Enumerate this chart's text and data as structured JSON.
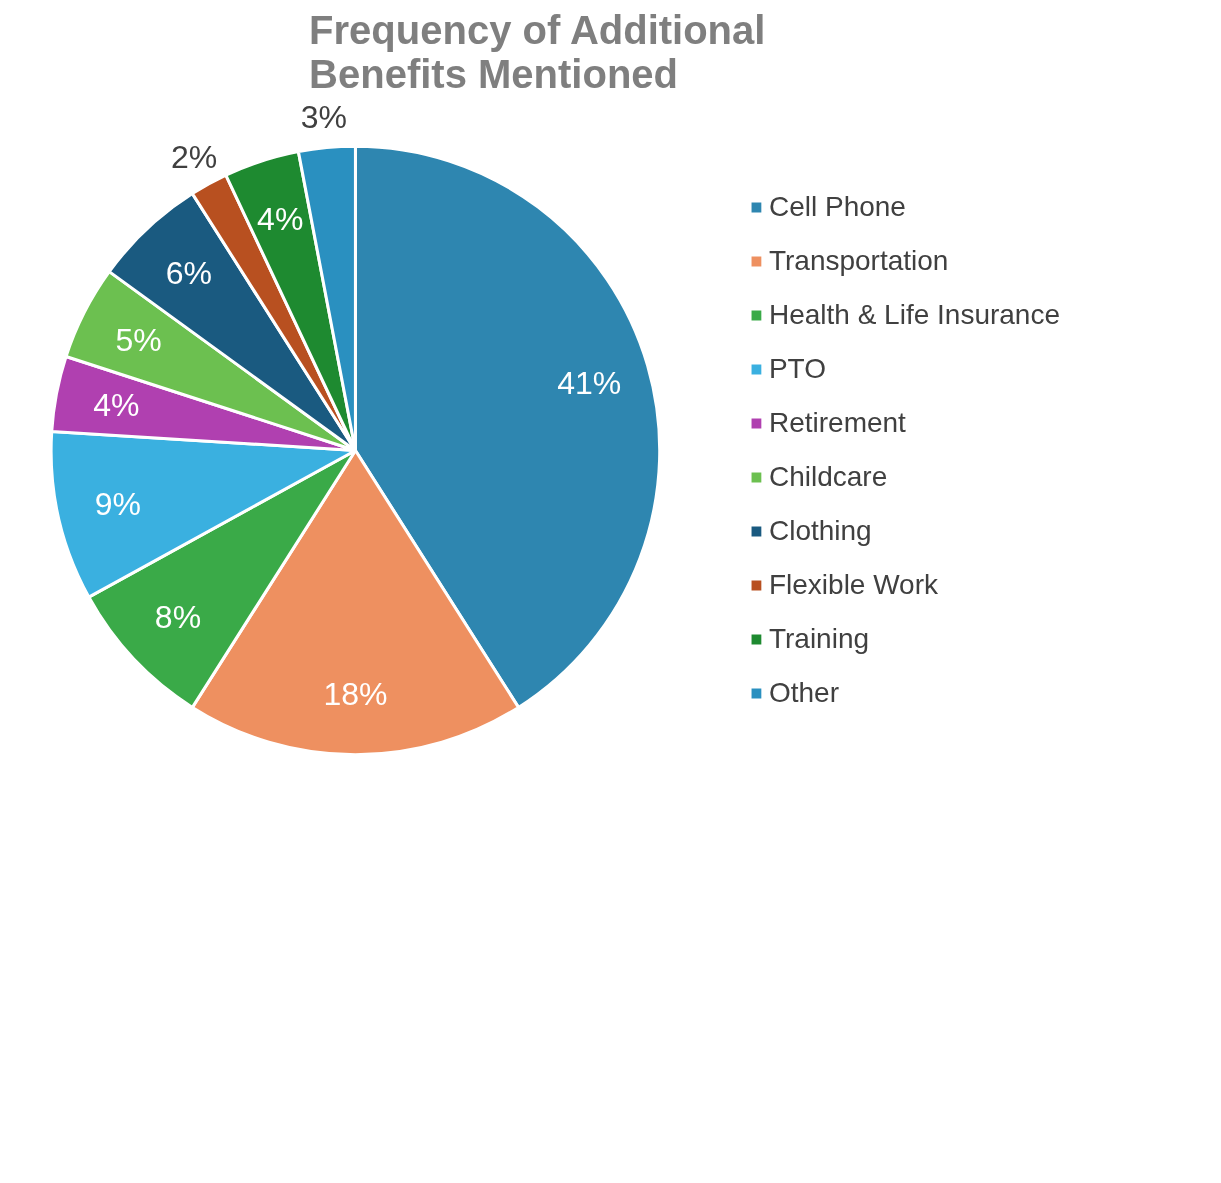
{
  "chart_data": {
    "type": "pie",
    "title": "Frequency of Additional Benefits Mentioned",
    "categories": [
      "Cell Phone",
      "Transportation",
      "Health & Life Insurance",
      "PTO",
      "Retirement",
      "Childcare",
      "Clothing",
      "Flexible Work",
      "Training",
      "Other"
    ],
    "values": [
      41,
      18,
      8,
      9,
      4,
      5,
      6,
      2,
      4,
      3
    ],
    "value_labels": [
      "41%",
      "18%",
      "8%",
      "9%",
      "4%",
      "5%",
      "6%",
      "2%",
      "4%",
      "3%"
    ],
    "colors": [
      "#2e86b0",
      "#ee9060",
      "#3aaa48",
      "#3ab0e0",
      "#b040b0",
      "#6cc050",
      "#1a5a80",
      "#b85020",
      "#1e8a30",
      "#2a90c0"
    ],
    "legend": "right"
  }
}
